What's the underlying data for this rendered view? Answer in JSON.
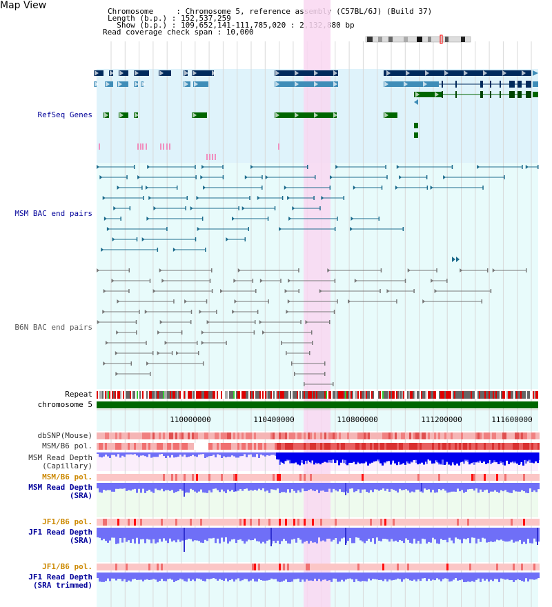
{
  "header": {
    "title": "Map View",
    "info_lines": [
      "Chromosome     : Chromosome 5, reference assembly (C57BL/6J) (Build 37)",
      "Length (b.p.) : 152,537,259",
      "  Show (b.p.) : 109,652,141-111,785,020 : 2,132,880 bp",
      "Read coverage check span : 10,000"
    ]
  },
  "tracks": {
    "refseq": {
      "label": "RefSeq Genes",
      "color": "#000099"
    },
    "msm_bac": {
      "label": "MSM BAC end pairs",
      "color": "#000099"
    },
    "b6n_bac": {
      "label": "B6N BAC end pairs",
      "color": "#555555"
    },
    "repeat": {
      "label": "Repeat"
    },
    "chromosome": {
      "label": "chromosome 5"
    },
    "dbsnp": {
      "label": "dbSNP(Mouse)"
    },
    "msm_b6_pol_1": {
      "label": "MSM/B6 pol."
    },
    "msm_depth_cap": {
      "label": "MSM Read Depth\n(Capillary)"
    },
    "msm_b6_pol_2": {
      "label": "MSM/B6 pol.",
      "color": "#cc8800"
    },
    "msm_depth_sra": {
      "label": "MSM Read Depth\n(SRA)",
      "color": "#000099"
    },
    "jf1_b6_pol_1": {
      "label": "JF1/B6 pol.",
      "color": "#cc8800"
    },
    "jf1_depth_sra": {
      "label": "JF1 Read Depth\n(SRA)",
      "color": "#000099"
    },
    "jf1_b6_pol_2": {
      "label": "JF1/B6 pol.",
      "color": "#cc8800"
    },
    "jf1_depth_trim": {
      "label": "JF1 Read Depth\n(SRA trimmed)",
      "color": "#000099"
    }
  },
  "ruler": {
    "ticks": [
      "110000000",
      "110400000",
      "110800000",
      "111200000",
      "111600000"
    ]
  },
  "colors": {
    "refseq_bg": "#dff3fb",
    "pair_bg": "#e8fbfb",
    "highlight": "#f9d7f1",
    "gene_dark": "#002a5c",
    "gene_mid": "#3f8db8",
    "gene_green": "#006600",
    "msm_pair": "#1c6b8c",
    "b6n_pair": "#777777",
    "chromosome": "#006600",
    "depth_dark": "#0000ee",
    "depth_light": "#6f6ff7"
  }
}
